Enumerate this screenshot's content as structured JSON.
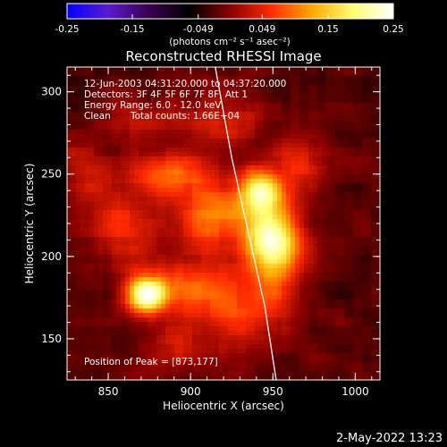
{
  "chart_data": {
    "type": "heatmap",
    "title": "Reconstructed RHESSI Image",
    "xlabel": "Heliocentric X (arcsec)",
    "ylabel": "Heliocentric Y (arcsec)",
    "xlim": [
      825,
      1015
    ],
    "ylim": [
      125,
      315
    ],
    "x_ticks": [
      850,
      900,
      950,
      1000
    ],
    "y_ticks": [
      150,
      200,
      250,
      300
    ],
    "colorbar": {
      "range": [
        -0.25,
        0.25
      ],
      "ticks": [
        "-0.25",
        "-0.15",
        "-0.049",
        "0.049",
        "0.15",
        "0.25"
      ],
      "unit_label": "(photons cm⁻² s⁻¹ asec⁻²)",
      "colors": [
        "#0000ff",
        "#5a1ad0",
        "#3a0050",
        "#000000",
        "#8a0000",
        "#ff2a00",
        "#ffa800",
        "#ffff70",
        "#ffffff"
      ]
    },
    "annotations": {
      "time_range": "12-Jun-2003 04:31:20.000 to 04:37:20.000",
      "detectors": "Detectors: 3F 4F 5F 6F 7F 8F, Att 1",
      "energy": "Energy Range: 6.0 - 12.0 keV",
      "method": "Clean",
      "counts": "Total counts: 1.66E+04",
      "peak": "Position of Peak = [873,177]"
    },
    "peak": [
      873,
      177
    ],
    "limb": [
      [
        915,
        315
      ],
      [
        925,
        260
      ],
      [
        935,
        215
      ],
      [
        945,
        170
      ],
      [
        952,
        125
      ]
    ],
    "sources": [
      {
        "x": 873,
        "y": 177,
        "sx": 9,
        "sy": 8,
        "a": 0.26
      },
      {
        "x": 950,
        "y": 208,
        "sx": 12,
        "sy": 18,
        "a": 0.24
      },
      {
        "x": 942,
        "y": 240,
        "sx": 9,
        "sy": 9,
        "a": 0.18
      },
      {
        "x": 915,
        "y": 225,
        "sx": 16,
        "sy": 16,
        "a": 0.12
      },
      {
        "x": 885,
        "y": 248,
        "sx": 16,
        "sy": 10,
        "a": 0.12
      },
      {
        "x": 900,
        "y": 180,
        "sx": 18,
        "sy": 14,
        "a": 0.1
      },
      {
        "x": 860,
        "y": 215,
        "sx": 14,
        "sy": 18,
        "a": 0.08
      },
      {
        "x": 935,
        "y": 165,
        "sx": 18,
        "sy": 14,
        "a": 0.08
      },
      {
        "x": 965,
        "y": 255,
        "sx": 14,
        "sy": 12,
        "a": 0.07
      },
      {
        "x": 862,
        "y": 282,
        "sx": 14,
        "sy": 10,
        "a": 0.05
      },
      {
        "x": 915,
        "y": 285,
        "sx": 18,
        "sy": 12,
        "a": 0.06
      },
      {
        "x": 895,
        "y": 142,
        "sx": 18,
        "sy": 10,
        "a": 0.05
      },
      {
        "x": 835,
        "y": 250,
        "sx": 12,
        "sy": 16,
        "a": 0.05
      }
    ]
  },
  "footer": {
    "date": "2-May-2022 13:23"
  }
}
